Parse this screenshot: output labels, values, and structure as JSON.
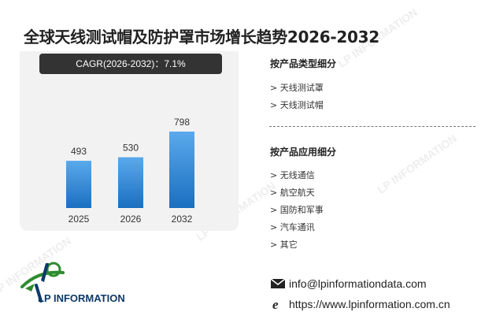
{
  "title": "全球天线测试帽及防护罩市场增长趋势2026-2032",
  "cagr_label": "CAGR(2026-2032)：7.1%",
  "segments": {
    "product_title": "按产品类型细分",
    "product_items": [
      "> 天线测试罩",
      "> 天线测试帽"
    ],
    "application_title": "按产品应用细分",
    "application_items": [
      "> 无线通信",
      "> 航空航天",
      "> 国防和军事",
      "> 汽车通讯",
      "> 其它"
    ]
  },
  "contact": {
    "email": "info@lpinformationdata.com",
    "website": "https://www.lpinformation.com.cn"
  },
  "logo": {
    "text": "LP INFORMATION",
    "watermark": "LP INFORMATION"
  },
  "colors": {
    "bar_top": "#5aa9ec",
    "bar_bottom": "#1a6fc0",
    "badge": "#333333",
    "logo_green": "#2e8b2e",
    "logo_blue": "#0b3a6b"
  },
  "chart_data": {
    "type": "bar",
    "categories": [
      "2025",
      "2026",
      "2032"
    ],
    "values": [
      493,
      530,
      798
    ],
    "title": "",
    "xlabel": "",
    "ylabel": "",
    "ylim": [
      0,
      900
    ],
    "grid": false,
    "legend": "none"
  }
}
